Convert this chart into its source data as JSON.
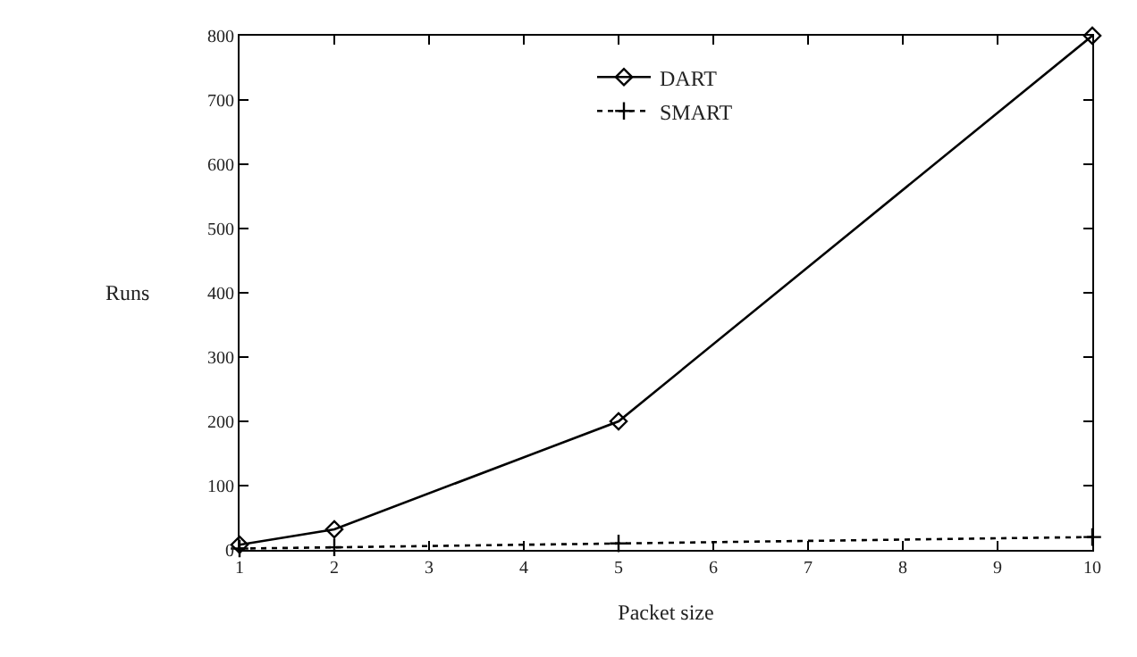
{
  "chart_data": {
    "type": "line",
    "xlabel": "Packet size",
    "ylabel": "Runs",
    "xlim": [
      1,
      10
    ],
    "xticks": [
      1,
      2,
      3,
      4,
      5,
      6,
      7,
      8,
      9,
      10
    ],
    "ylim": [
      0,
      800
    ],
    "yticks": [
      0,
      100,
      200,
      300,
      400,
      500,
      600,
      700,
      800
    ],
    "legend": "top",
    "series": [
      {
        "name": "DART",
        "color": "#000000",
        "x": [
          1,
          2,
          5,
          10
        ],
        "values": [
          8,
          32,
          200,
          800
        ],
        "marker": "diamond",
        "line_style": "solid"
      },
      {
        "name": "SMART",
        "color": "#000000",
        "x": [
          1,
          2,
          5,
          10
        ],
        "values": [
          2,
          4,
          10,
          20
        ],
        "marker": "cross",
        "line_style": "dotted"
      }
    ]
  }
}
